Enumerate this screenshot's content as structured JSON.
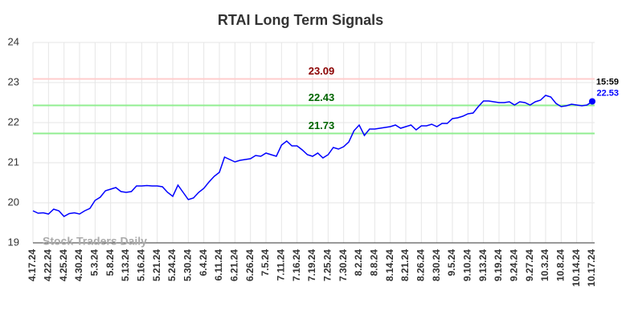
{
  "chart_data": {
    "type": "line",
    "title": "RTAI Long Term Signals",
    "categories": [
      "4.17.24",
      null,
      null,
      "4.22.24",
      null,
      null,
      "4.25.24",
      null,
      null,
      "4.30.24",
      null,
      null,
      "5.3.24",
      null,
      null,
      "5.8.24",
      null,
      null,
      "5.13.24",
      null,
      null,
      "5.16.24",
      null,
      null,
      "5.21.24",
      null,
      null,
      "5.24.24",
      null,
      null,
      "5.30.24",
      null,
      null,
      "6.4.24",
      null,
      null,
      "6.11.24",
      null,
      null,
      "6.21.24",
      null,
      null,
      "6.26.24",
      null,
      null,
      "7.5.24",
      null,
      null,
      "7.11.24",
      null,
      null,
      "7.16.24",
      null,
      null,
      "7.19.24",
      null,
      null,
      "7.25.24",
      null,
      null,
      "7.30.24",
      null,
      null,
      "8.2.24",
      null,
      null,
      "8.8.24",
      null,
      null,
      "8.14.24",
      null,
      null,
      "8.21.24",
      null,
      null,
      "8.26.24",
      null,
      null,
      "8.30.24",
      null,
      null,
      "9.5.24",
      null,
      null,
      "9.10.24",
      null,
      null,
      "9.13.24",
      null,
      null,
      "9.19.24",
      null,
      null,
      "9.24.24",
      null,
      null,
      "9.27.24",
      null,
      null,
      "10.3.24",
      null,
      null,
      "10.8.24",
      null,
      null,
      "10.14.24",
      null,
      null,
      "10.17.24"
    ],
    "values": [
      19.8,
      19.74,
      19.75,
      19.72,
      19.84,
      19.8,
      19.66,
      19.73,
      19.75,
      19.72,
      19.8,
      19.86,
      20.06,
      20.14,
      20.3,
      20.34,
      20.38,
      20.28,
      20.26,
      20.28,
      20.42,
      20.42,
      20.43,
      20.42,
      20.42,
      20.4,
      20.26,
      20.16,
      20.44,
      20.26,
      20.08,
      20.12,
      20.26,
      20.36,
      20.52,
      20.66,
      20.76,
      21.14,
      21.08,
      21.02,
      21.06,
      21.08,
      21.1,
      21.18,
      21.16,
      21.24,
      21.2,
      21.16,
      21.44,
      21.54,
      21.42,
      21.42,
      21.32,
      21.2,
      21.16,
      21.24,
      21.12,
      21.2,
      21.38,
      21.34,
      21.4,
      21.52,
      21.8,
      21.94,
      21.68,
      21.84,
      21.84,
      21.86,
      21.88,
      21.9,
      21.94,
      21.86,
      21.9,
      21.94,
      21.82,
      21.92,
      21.92,
      21.96,
      21.9,
      21.98,
      21.98,
      22.1,
      22.12,
      22.16,
      22.22,
      22.24,
      22.4,
      22.54,
      22.54,
      22.52,
      22.5,
      22.5,
      22.52,
      22.44,
      22.52,
      22.5,
      22.44,
      22.52,
      22.56,
      22.68,
      22.64,
      22.48,
      22.4,
      22.42,
      22.46,
      22.44,
      22.42,
      22.44,
      22.53
    ],
    "color": "#0000ff",
    "ylim": [
      19,
      24
    ],
    "yticks": [
      19,
      20,
      21,
      22,
      23,
      24
    ],
    "grid": true,
    "reference_lines": [
      {
        "value": 23.09,
        "color": "#ffcccc",
        "label_color": "#8b0000"
      },
      {
        "value": 22.43,
        "color": "#90ee90",
        "label_color": "#006400"
      },
      {
        "value": 21.73,
        "color": "#90ee90",
        "label_color": "#006400"
      }
    ],
    "last_time": "15:59",
    "watermark": "Stock Traders Daily"
  }
}
